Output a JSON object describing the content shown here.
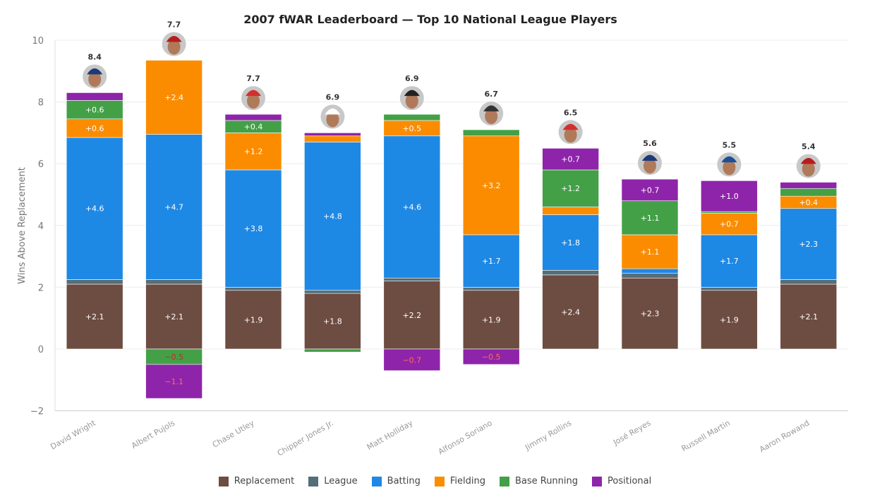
{
  "chart_data": {
    "type": "bar",
    "stacked": true,
    "title": "2007 fWAR Leaderboard — Top 10 National League Players",
    "xlabel": "",
    "ylabel": "Wins Above Replacement",
    "ylim": [
      -2,
      10
    ],
    "yticks": [
      -2,
      0,
      2,
      4,
      6,
      8,
      10
    ],
    "grid": true,
    "legend_position": "bottom",
    "categories": [
      "David Wright",
      "Albert Pujols",
      "Chase Utley",
      "Chipper Jones Jr.",
      "Matt Holliday",
      "Alfonso Soriano",
      "Jimmy Rollins",
      "José Reyes",
      "Russell Martin",
      "Aaron Rowand"
    ],
    "totals": [
      "8.4",
      "7.7",
      "7.7",
      "6.9",
      "6.9",
      "6.7",
      "6.5",
      "5.6",
      "5.5",
      "5.4"
    ],
    "cap_colors": [
      "#1a3a7a",
      "#b71c1c",
      "#d32f2f",
      "#ffffff",
      "#222222",
      "#333333",
      "#d32f2f",
      "#1a3a7a",
      "#1a4f9a",
      "#b71c1c"
    ],
    "series": [
      {
        "name": "Replacement",
        "color": "#6d4c41",
        "values": [
          2.1,
          2.1,
          1.9,
          1.8,
          2.2,
          1.9,
          2.4,
          2.3,
          1.9,
          2.1
        ]
      },
      {
        "name": "League",
        "color": "#546e7a",
        "values": [
          0.15,
          0.15,
          0.1,
          0.1,
          0.1,
          0.1,
          0.15,
          0.15,
          0.1,
          0.15
        ]
      },
      {
        "name": "Batting",
        "color": "#1e88e5",
        "values": [
          4.6,
          4.7,
          3.8,
          4.8,
          4.6,
          1.7,
          1.8,
          0.15,
          1.7,
          2.3
        ]
      },
      {
        "name": "Fielding",
        "color": "#fb8c00",
        "values": [
          0.6,
          2.4,
          1.2,
          0.2,
          0.5,
          3.2,
          0.25,
          1.1,
          0.7,
          0.4
        ]
      },
      {
        "name": "Base Running",
        "color": "#43a047",
        "values": [
          0.6,
          -0.5,
          0.4,
          -0.1,
          0.2,
          0.2,
          1.2,
          1.1,
          0.05,
          0.25
        ]
      },
      {
        "name": "Positional",
        "color": "#8e24aa",
        "values": [
          0.25,
          -1.1,
          0.2,
          0.1,
          -0.7,
          -0.5,
          0.7,
          0.7,
          1.0,
          0.2
        ]
      }
    ]
  }
}
